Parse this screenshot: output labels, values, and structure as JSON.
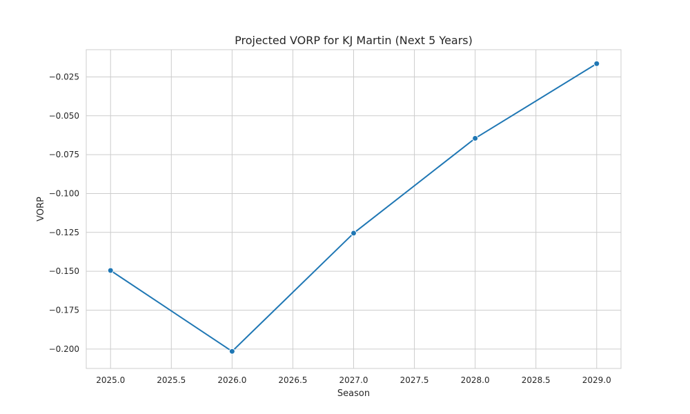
{
  "chart_data": {
    "type": "line",
    "title": "Projected VORP for KJ Martin (Next 5 Years)",
    "xlabel": "Season",
    "ylabel": "VORP",
    "x": [
      2025.0,
      2026.0,
      2027.0,
      2028.0,
      2029.0
    ],
    "series": [
      {
        "values": [
          -0.1495,
          -0.2015,
          -0.1255,
          -0.0645,
          -0.0165
        ],
        "color": "#1f77b4",
        "marker": "circle"
      }
    ],
    "xlim": [
      2024.8,
      2029.2
    ],
    "ylim": [
      -0.2125,
      -0.0075
    ],
    "xticks": [
      2025.0,
      2025.5,
      2026.0,
      2026.5,
      2027.0,
      2027.5,
      2028.0,
      2028.5,
      2029.0
    ],
    "yticks": [
      -0.2,
      -0.175,
      -0.15,
      -0.125,
      -0.1,
      -0.075,
      -0.05,
      -0.025
    ],
    "xtick_labels": [
      "2025.0",
      "2025.5",
      "2026.0",
      "2026.5",
      "2027.0",
      "2027.5",
      "2028.0",
      "2028.5",
      "2029.0"
    ],
    "ytick_labels": [
      "−0.200",
      "−0.175",
      "−0.150",
      "−0.125",
      "−0.100",
      "−0.075",
      "−0.050",
      "−0.025"
    ],
    "grid": true,
    "legend": false
  }
}
